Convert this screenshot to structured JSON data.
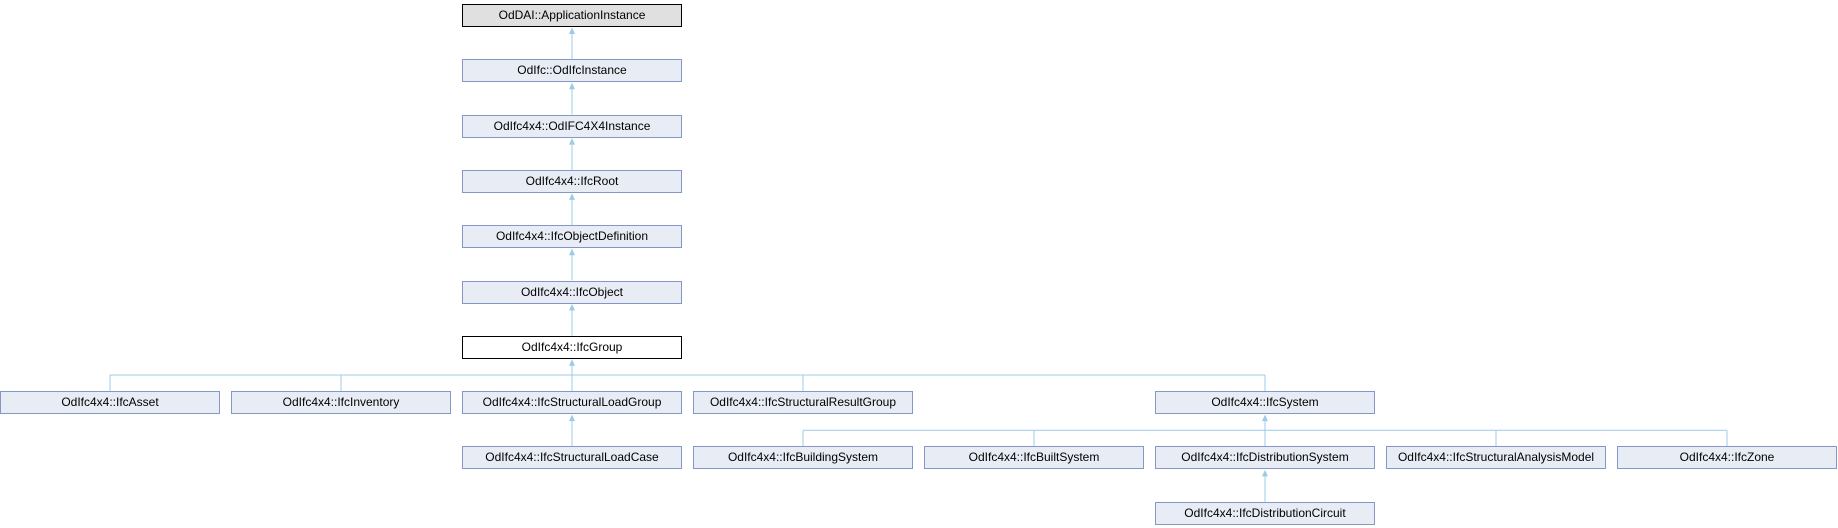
{
  "diagram": {
    "type": "class-inheritance-graph",
    "current_class": "OdIfc4x4::IfcGroup",
    "colors": {
      "node_fill": "#e8ecf5",
      "node_border": "#8497c8",
      "root_fill": "#e0e0e0",
      "edge": "#9ccbe8"
    },
    "nodes": [
      {
        "id": "OdDAI::ApplicationInstance",
        "label": "OdDAI::ApplicationInstance",
        "parent": null,
        "style": "root"
      },
      {
        "id": "OdIfc::OdIfcInstance",
        "label": "OdIfc::OdIfcInstance",
        "parent": "OdDAI::ApplicationInstance"
      },
      {
        "id": "OdIfc4x4::OdIFC4X4Instance",
        "label": "OdIfc4x4::OdIFC4X4Instance",
        "parent": "OdIfc::OdIfcInstance"
      },
      {
        "id": "OdIfc4x4::IfcRoot",
        "label": "OdIfc4x4::IfcRoot",
        "parent": "OdIfc4x4::OdIFC4X4Instance"
      },
      {
        "id": "OdIfc4x4::IfcObjectDefinition",
        "label": "OdIfc4x4::IfcObjectDefinition",
        "parent": "OdIfc4x4::IfcRoot"
      },
      {
        "id": "OdIfc4x4::IfcObject",
        "label": "OdIfc4x4::IfcObject",
        "parent": "OdIfc4x4::IfcObjectDefinition"
      },
      {
        "id": "OdIfc4x4::IfcGroup",
        "label": "OdIfc4x4::IfcGroup",
        "parent": "OdIfc4x4::IfcObject",
        "style": "current"
      },
      {
        "id": "OdIfc4x4::IfcAsset",
        "label": "OdIfc4x4::IfcAsset",
        "parent": "OdIfc4x4::IfcGroup"
      },
      {
        "id": "OdIfc4x4::IfcInventory",
        "label": "OdIfc4x4::IfcInventory",
        "parent": "OdIfc4x4::IfcGroup"
      },
      {
        "id": "OdIfc4x4::IfcStructuralLoadGroup",
        "label": "OdIfc4x4::IfcStructuralLoadGroup",
        "parent": "OdIfc4x4::IfcGroup"
      },
      {
        "id": "OdIfc4x4::IfcStructuralResultGroup",
        "label": "OdIfc4x4::IfcStructuralResultGroup",
        "parent": "OdIfc4x4::IfcGroup"
      },
      {
        "id": "OdIfc4x4::IfcSystem",
        "label": "OdIfc4x4::IfcSystem",
        "parent": "OdIfc4x4::IfcGroup"
      },
      {
        "id": "OdIfc4x4::IfcStructuralLoadCase",
        "label": "OdIfc4x4::IfcStructuralLoadCase",
        "parent": "OdIfc4x4::IfcStructuralLoadGroup"
      },
      {
        "id": "OdIfc4x4::IfcBuildingSystem",
        "label": "OdIfc4x4::IfcBuildingSystem",
        "parent": "OdIfc4x4::IfcSystem"
      },
      {
        "id": "OdIfc4x4::IfcBuiltSystem",
        "label": "OdIfc4x4::IfcBuiltSystem",
        "parent": "OdIfc4x4::IfcSystem"
      },
      {
        "id": "OdIfc4x4::IfcDistributionSystem",
        "label": "OdIfc4x4::IfcDistributionSystem",
        "parent": "OdIfc4x4::IfcSystem"
      },
      {
        "id": "OdIfc4x4::IfcStructuralAnalysisModel",
        "label": "OdIfc4x4::IfcStructuralAnalysisModel",
        "parent": "OdIfc4x4::IfcSystem"
      },
      {
        "id": "OdIfc4x4::IfcZone",
        "label": "OdIfc4x4::IfcZone",
        "parent": "OdIfc4x4::IfcSystem"
      },
      {
        "id": "OdIfc4x4::IfcDistributionCircuit",
        "label": "OdIfc4x4::IfcDistributionCircuit",
        "parent": "OdIfc4x4::IfcDistributionSystem"
      }
    ]
  }
}
